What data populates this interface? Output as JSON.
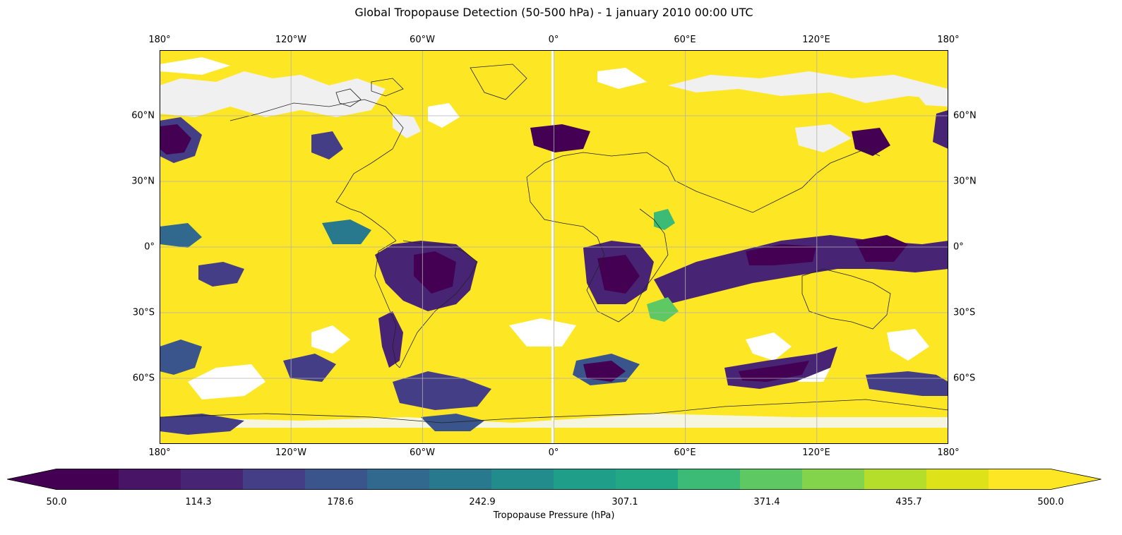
{
  "title": "Global Tropopause Detection (50-500 hPa) - 1 january 2010 00:00 UTC",
  "map": {
    "projection": "PlateCarree",
    "extent": {
      "lon": [
        -180,
        180
      ],
      "lat": [
        -90,
        90
      ]
    },
    "gridlines": true,
    "coastlines": true,
    "lon_labels": [
      "180°",
      "120°W",
      "60°W",
      "0°",
      "60°E",
      "120°E",
      "180°"
    ],
    "lat_labels": [
      "60°N",
      "30°N",
      "0°",
      "30°S",
      "60°S"
    ],
    "lon_values": [
      -180,
      -120,
      -60,
      0,
      60,
      120,
      180
    ],
    "lat_values": [
      60,
      30,
      0,
      -30,
      -60
    ],
    "field": "tropopause pressure (hPa)",
    "missing_value_color": "#ffffff",
    "land_no_detection_color": "#f0f0f0"
  },
  "colorbar": {
    "label": "Tropopause Pressure (hPa)",
    "colormap": "viridis",
    "extend": "both",
    "levels_min": 50.0,
    "levels_max": 500.0,
    "n_bins": 14,
    "tick_labels": [
      "50.0",
      "114.3",
      "178.6",
      "242.9",
      "307.1",
      "371.4",
      "435.7",
      "500.0"
    ],
    "tick_values": [
      50.0,
      114.3,
      178.6,
      242.9,
      307.1,
      371.4,
      435.7,
      500.0
    ],
    "bin_colors": [
      "#440154",
      "#471466",
      "#482475",
      "#433e85",
      "#3a548c",
      "#31688e",
      "#29798e",
      "#228c8d",
      "#1f9e89",
      "#22a884",
      "#3bbb75",
      "#5ec962",
      "#84d44b",
      "#b5de2b",
      "#dde318",
      "#fde725"
    ],
    "under_color": "#440154",
    "over_color": "#fde725"
  }
}
